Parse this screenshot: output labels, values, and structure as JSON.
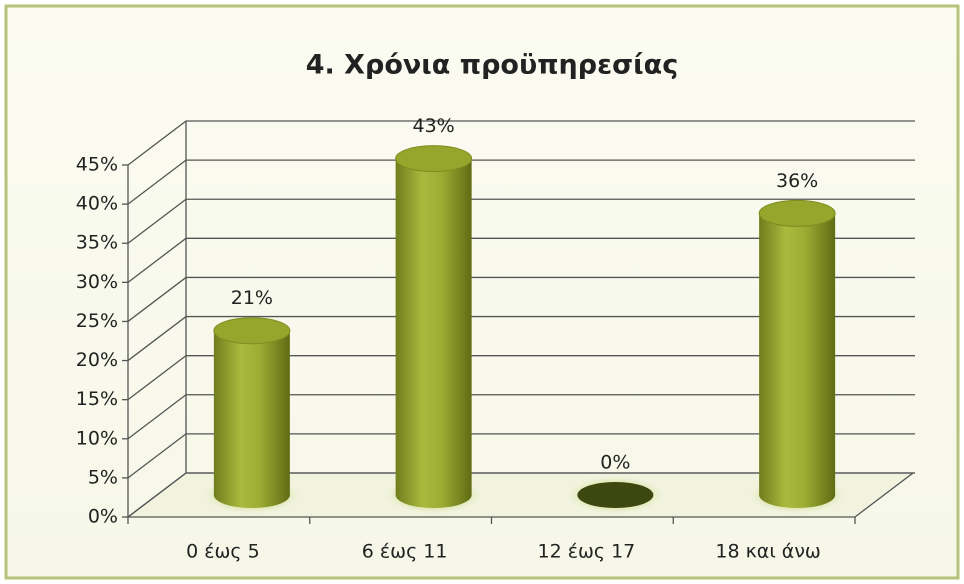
{
  "chart_data": {
    "type": "bar3d",
    "title": "4. Χρόνια προϋπηρεσίας",
    "categories": [
      "0 έως 5",
      "6 έως 11",
      "12 έως 17",
      "18 και άνω"
    ],
    "values": [
      21,
      43,
      0,
      36
    ],
    "value_labels": [
      "21%",
      "43%",
      "0%",
      "36%"
    ],
    "color": "#9aab33",
    "ylim": [
      0,
      45
    ],
    "yticks": [
      {
        "value": 0,
        "label": "0%"
      },
      {
        "value": 5,
        "label": "5%"
      },
      {
        "value": 10,
        "label": "10%"
      },
      {
        "value": 15,
        "label": "15%"
      },
      {
        "value": 20,
        "label": "20%"
      },
      {
        "value": 25,
        "label": "25%"
      },
      {
        "value": 30,
        "label": "30%"
      },
      {
        "value": 35,
        "label": "35%"
      },
      {
        "value": 40,
        "label": "40%"
      },
      {
        "value": 45,
        "label": "45%"
      }
    ],
    "grid": true
  }
}
